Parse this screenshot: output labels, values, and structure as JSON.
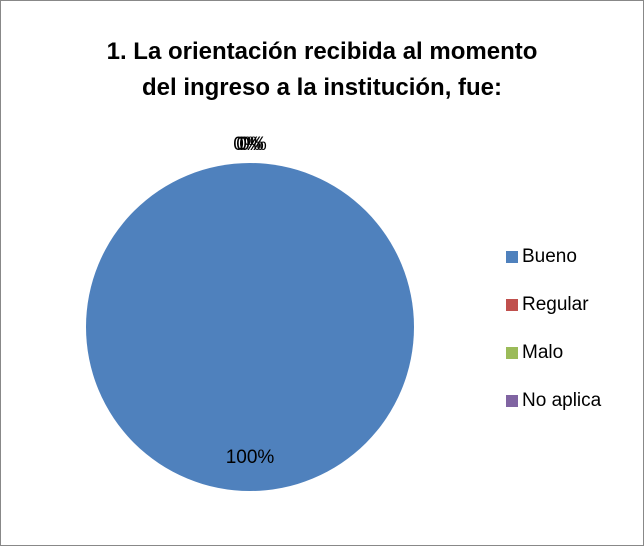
{
  "chart_data": {
    "type": "pie",
    "title": "1. La orientación recibida al momento\ndel ingreso a la institución, fue:",
    "categories": [
      "Bueno",
      "Regular",
      "Malo",
      "No aplica"
    ],
    "values": [
      100,
      0,
      0,
      0
    ],
    "value_labels": [
      "100%",
      "0%",
      "0%",
      "0%"
    ],
    "colors": [
      "#4f81bd",
      "#c0504d",
      "#9bbb59",
      "#8064a2"
    ],
    "legend": "right"
  }
}
